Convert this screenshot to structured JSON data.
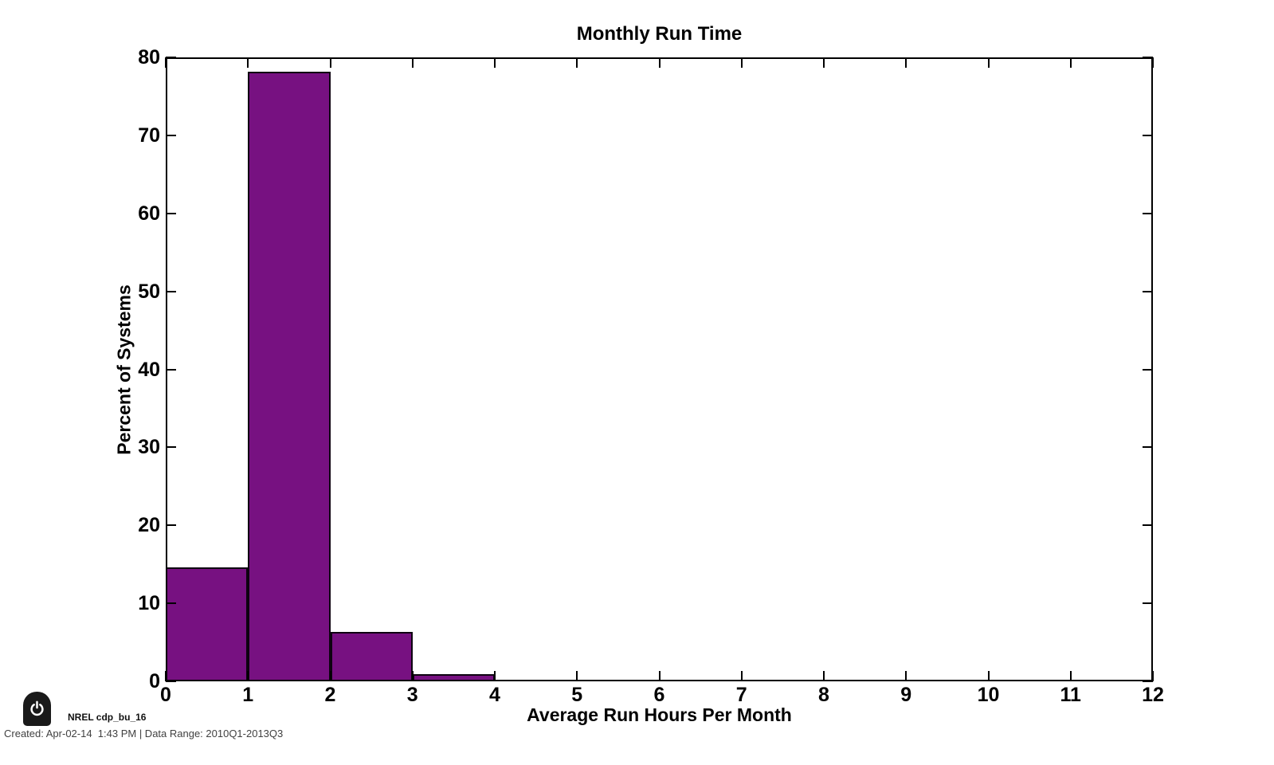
{
  "chart_data": {
    "type": "bar",
    "subtype": "histogram",
    "title": "Monthly Run Time",
    "xlabel": "Average Run Hours Per Month",
    "ylabel": "Percent of Systems",
    "xlim": [
      0,
      12
    ],
    "ylim": [
      0,
      80
    ],
    "x_ticks": [
      0,
      1,
      2,
      3,
      4,
      5,
      6,
      7,
      8,
      9,
      10,
      11,
      12
    ],
    "y_ticks": [
      0,
      10,
      20,
      30,
      40,
      50,
      60,
      70,
      80
    ],
    "bins": [
      {
        "x0": 0,
        "x1": 1,
        "value": 14.6
      },
      {
        "x0": 1,
        "x1": 2,
        "value": 78.2
      },
      {
        "x0": 2,
        "x1": 3,
        "value": 6.3
      },
      {
        "x0": 3,
        "x1": 4,
        "value": 0.9
      }
    ],
    "bar_color": "#771181",
    "bar_edge_color": "#0e0311",
    "axis_color": "#000000",
    "grid": false,
    "legend": null
  },
  "footer": {
    "brand": "NREL cdp_bu_16",
    "meta": "Created: Apr-02-14  1:43 PM | Data Range: 2010Q1-2013Q3",
    "badge_color": "#1a1a1a",
    "badge_glyph_color": "#ffffff"
  }
}
